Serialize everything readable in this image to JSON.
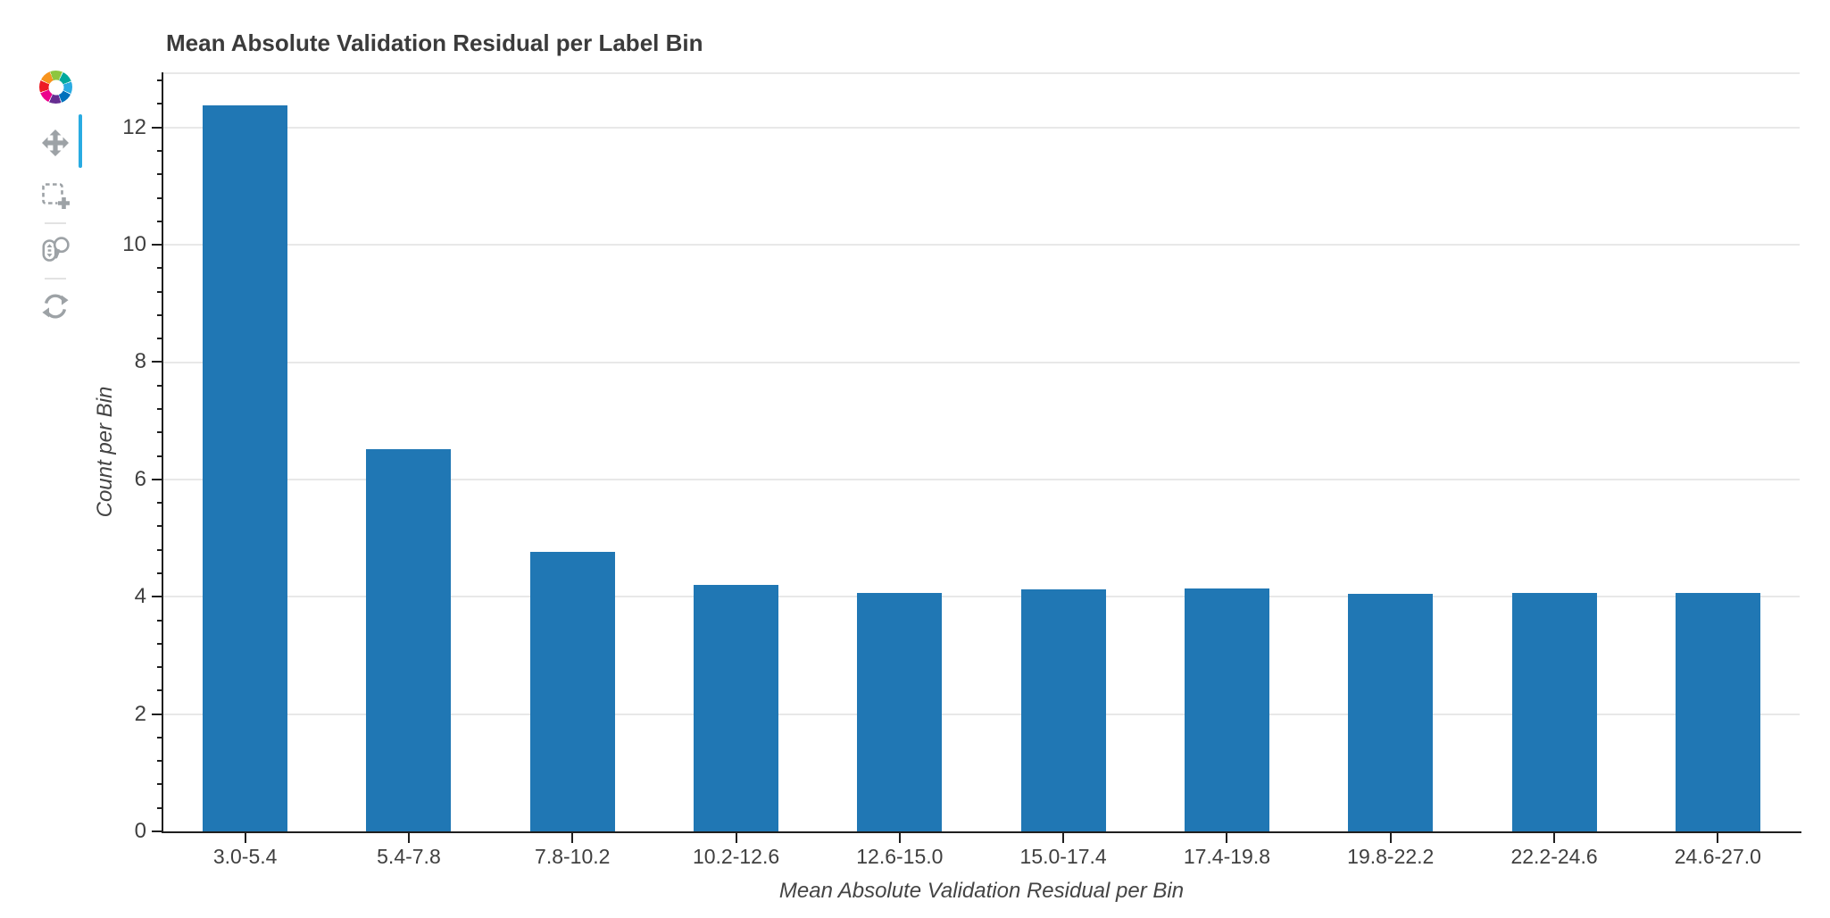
{
  "figure": {
    "title": "Mean Absolute Validation Residual per Label Bin"
  },
  "toolbar": {
    "icon_color": "#9DA2A6",
    "active_indicator_color": "#29ABE2",
    "logo_colors": [
      "#8DC63F",
      "#00A99D",
      "#29ABE2",
      "#0071BC",
      "#662D91",
      "#EC008C",
      "#ED1C24",
      "#F7941E"
    ],
    "tools": [
      {
        "id": "pan",
        "label": "Pan",
        "active": true
      },
      {
        "id": "box-zoom",
        "label": "Box Zoom",
        "active": false
      },
      {
        "id": "wheel-zoom",
        "label": "Wheel Zoom",
        "active": false
      },
      {
        "id": "reset",
        "label": "Reset",
        "active": false
      }
    ]
  },
  "chart_data": {
    "type": "bar",
    "title": "Mean Absolute Validation Residual per Label Bin",
    "xlabel": "Mean Absolute Validation Residual per Bin",
    "ylabel": "Count per Bin",
    "categories": [
      "3.0-5.4",
      "5.4-7.8",
      "7.8-10.2",
      "10.2-12.6",
      "12.6-15.0",
      "15.0-17.4",
      "17.4-19.8",
      "19.8-22.2",
      "22.2-24.6",
      "24.6-27.0"
    ],
    "values": [
      12.37,
      6.51,
      4.76,
      4.2,
      4.07,
      4.13,
      4.14,
      4.05,
      4.07,
      4.06
    ],
    "ylim": [
      0,
      12.94
    ],
    "yticks": [
      0,
      2,
      4,
      6,
      8,
      10,
      12
    ],
    "minor_tick_step": 0.4,
    "grid": "horizontal-majors",
    "legend": "none",
    "bar_color": "#2077B4",
    "bar_width_fraction": 0.52,
    "axis_line_color": "#1F1F1F",
    "grid_color": "#E8E8E8"
  }
}
